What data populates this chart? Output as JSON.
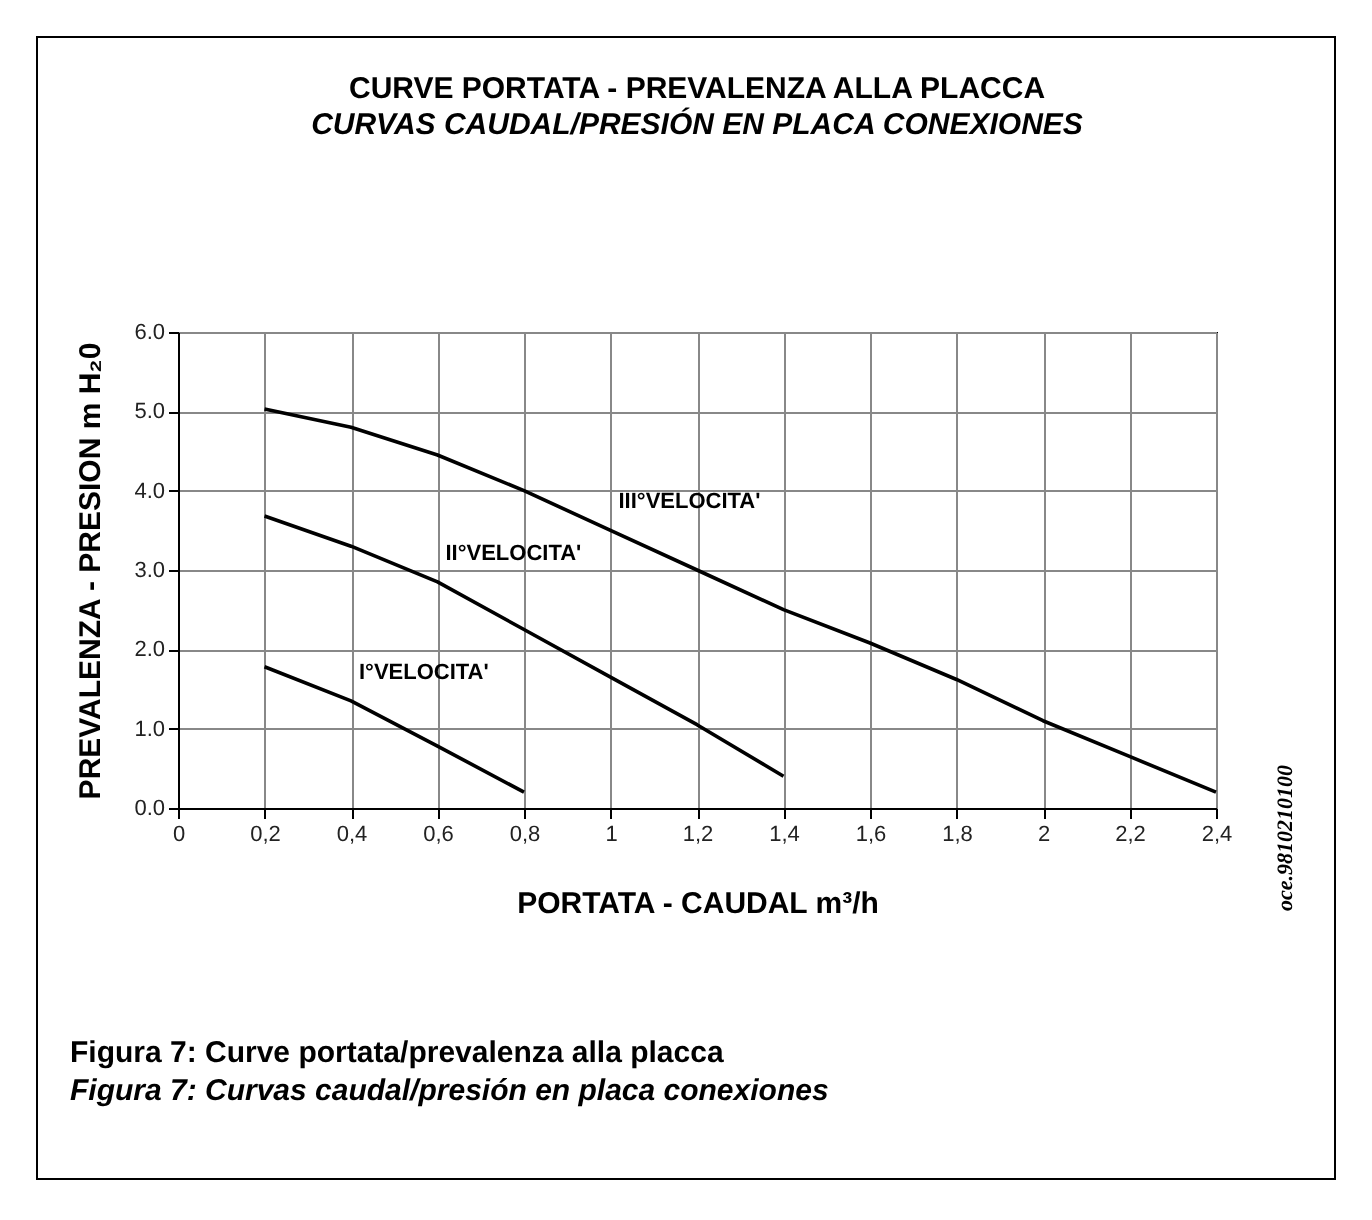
{
  "chart_data": {
    "type": "line",
    "title": "CURVE PORTATA - PREVALENZA ALLA PLACCA",
    "subtitle": "CURVAS CAUDAL/PRESIÓN EN PLACA CONEXIONES",
    "xlabel": "PORTATA - CAUDAL m³/h",
    "ylabel": "PREVALENZA - PRESION m H₂0",
    "series": [
      {
        "name": "I°VELOCITA'",
        "color": "#000000",
        "x": [
          0.2,
          0.4,
          0.6,
          0.8
        ],
        "values": [
          1.78,
          1.35,
          0.78,
          0.2
        ]
      },
      {
        "name": "II°VELOCITA'",
        "color": "#000000",
        "x": [
          0.2,
          0.4,
          0.6,
          0.8,
          1.0,
          1.2,
          1.4
        ],
        "values": [
          3.68,
          3.3,
          2.85,
          2.25,
          1.65,
          1.05,
          0.4
        ]
      },
      {
        "name": "III°VELOCITA'",
        "color": "#000000",
        "x": [
          0.2,
          0.4,
          0.6,
          0.8,
          1.0,
          1.2,
          1.4,
          1.6,
          1.8,
          2.0,
          2.2,
          2.4
        ],
        "values": [
          5.03,
          4.8,
          4.45,
          4.0,
          3.5,
          3.0,
          2.5,
          2.08,
          1.62,
          1.1,
          0.65,
          0.2
        ]
      }
    ],
    "xlim": [
      0,
      2.4
    ],
    "xticks": [
      {
        "value": 0,
        "label": "0"
      },
      {
        "value": 0.2,
        "label": "0,2"
      },
      {
        "value": 0.4,
        "label": "0,4"
      },
      {
        "value": 0.6,
        "label": "0,6"
      },
      {
        "value": 0.8,
        "label": "0,8"
      },
      {
        "value": 1,
        "label": "1"
      },
      {
        "value": 1.2,
        "label": "1,2"
      },
      {
        "value": 1.4,
        "label": "1,4"
      },
      {
        "value": 1.6,
        "label": "1,6"
      },
      {
        "value": 1.8,
        "label": "1,8"
      },
      {
        "value": 2,
        "label": "2"
      },
      {
        "value": 2.2,
        "label": "2,2"
      },
      {
        "value": 2.4,
        "label": "2,4"
      }
    ],
    "ylim": [
      0,
      6
    ],
    "yticks": [
      {
        "value": 0,
        "label": "0.0"
      },
      {
        "value": 1,
        "label": "1.0"
      },
      {
        "value": 2,
        "label": "2.0"
      },
      {
        "value": 3,
        "label": "3.0"
      },
      {
        "value": 4,
        "label": "4.0"
      },
      {
        "value": 5,
        "label": "5.0"
      },
      {
        "value": 6,
        "label": "6.0"
      }
    ],
    "grid": true,
    "legend": false,
    "marker": "none",
    "line_style": "solid",
    "annotations": [
      "oce.9810210100",
      "Figura 7: Curve portata/prevalenza alla placca",
      "Figura 7: Curvas caudal/presión en placa conexiones"
    ]
  }
}
